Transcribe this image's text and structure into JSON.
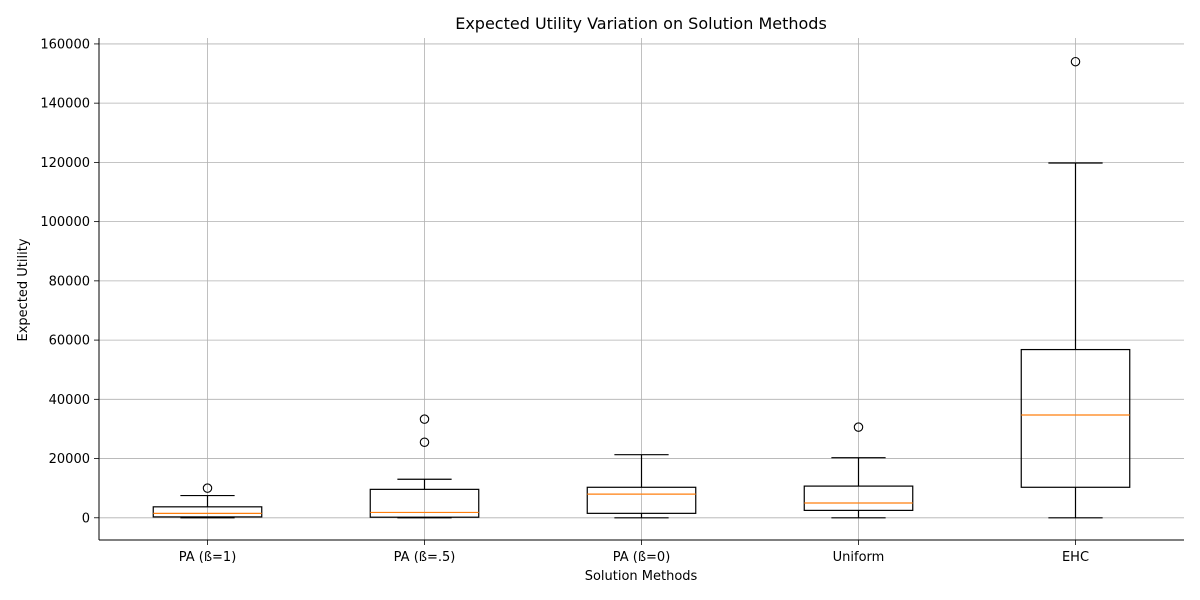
{
  "chart_data": {
    "type": "box",
    "title": "Expected Utility Variation on Solution Methods",
    "xlabel": "Solution Methods",
    "ylabel": "Expected Utility",
    "ylim": [
      -7500,
      162000
    ],
    "yticks": [
      0,
      20000,
      40000,
      60000,
      80000,
      100000,
      120000,
      140000,
      160000
    ],
    "grid": true,
    "categories": [
      "PA (ß=1)",
      "PA (ß=.5)",
      "PA (ß=0)",
      "Uniform",
      "EHC"
    ],
    "boxes": [
      {
        "whisker_low": 0,
        "q1": 300,
        "median": 1500,
        "q3": 3700,
        "whisker_high": 7500,
        "outliers": [
          10000
        ]
      },
      {
        "whisker_low": 0,
        "q1": 200,
        "median": 1800,
        "q3": 9600,
        "whisker_high": 13000,
        "outliers": [
          25500,
          33300
        ]
      },
      {
        "whisker_low": 0,
        "q1": 1500,
        "median": 8000,
        "q3": 10300,
        "whisker_high": 21300,
        "outliers": []
      },
      {
        "whisker_low": 0,
        "q1": 2500,
        "median": 5000,
        "q3": 10700,
        "whisker_high": 20300,
        "outliers": [
          30600
        ]
      },
      {
        "whisker_low": 0,
        "q1": 10300,
        "median": 34700,
        "q3": 56800,
        "whisker_high": 119800,
        "outliers": [
          154000
        ]
      }
    ],
    "colors": {
      "box": "#000000",
      "median": "#ff7f0e",
      "grid": "#b0b0b0"
    }
  }
}
